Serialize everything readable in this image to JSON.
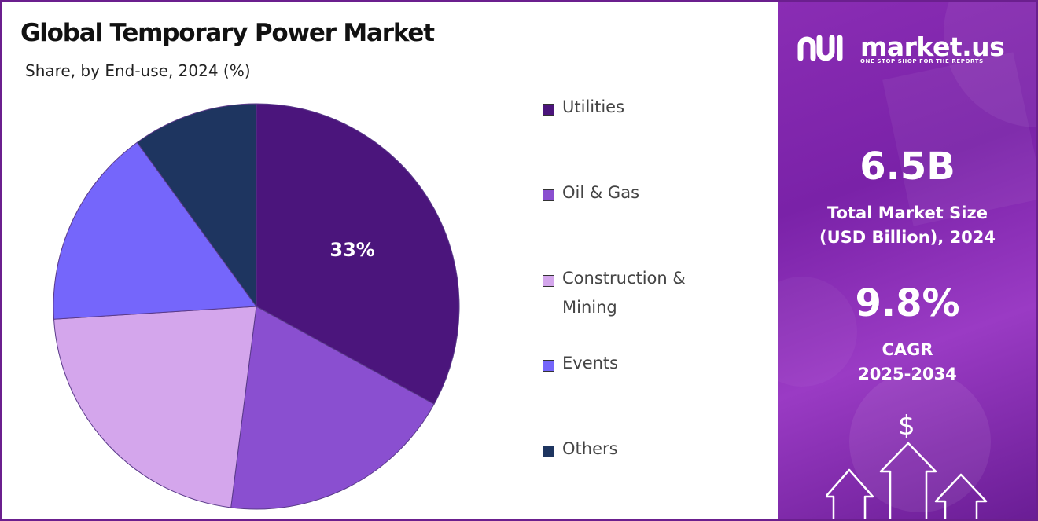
{
  "chart_data": {
    "type": "pie",
    "title": "Global Temporary Power Market",
    "subtitle": "Share, by End-use, 2024 (%)",
    "slices": [
      {
        "label": "Utilities",
        "value": 33,
        "color": "#4b157c",
        "data_label": "33%"
      },
      {
        "label": "Oil & Gas",
        "value": 19,
        "color": "#8a4fd0"
      },
      {
        "label": "Construction & Mining",
        "value": 22,
        "color": "#d4a6ec"
      },
      {
        "label": "Events",
        "value": 16,
        "color": "#7566fb"
      },
      {
        "label": "Others",
        "value": 10,
        "color": "#1e3560"
      }
    ],
    "legend": [
      {
        "label": "Utilities",
        "color": "#4b157c"
      },
      {
        "label": "Oil & Gas",
        "color": "#8a4fd0"
      },
      {
        "label": "Construction & Mining",
        "color": "#d4a6ec"
      },
      {
        "label": "Events",
        "color": "#7566fb"
      },
      {
        "label": "Others",
        "color": "#1e3560"
      }
    ],
    "legend_position": "right"
  },
  "brand": {
    "name": "market.us",
    "tagline": "ONE STOP SHOP FOR THE REPORTS",
    "icon": "market-us-logo-icon"
  },
  "kpis": {
    "market_size_value": "6.5B",
    "market_size_label": [
      "Total Market Size",
      "(USD Billion), 2024"
    ],
    "cagr_value": "9.8%",
    "cagr_label": [
      "CAGR",
      "2025-2034"
    ]
  },
  "decor": {
    "currency_symbol": "$",
    "arrows_icon": "growth-arrows-icon"
  },
  "colors": {
    "panel_gradient_start": "#8a2db4",
    "panel_gradient_end": "#6a1d95",
    "frame_border": "#6b1f8e"
  }
}
